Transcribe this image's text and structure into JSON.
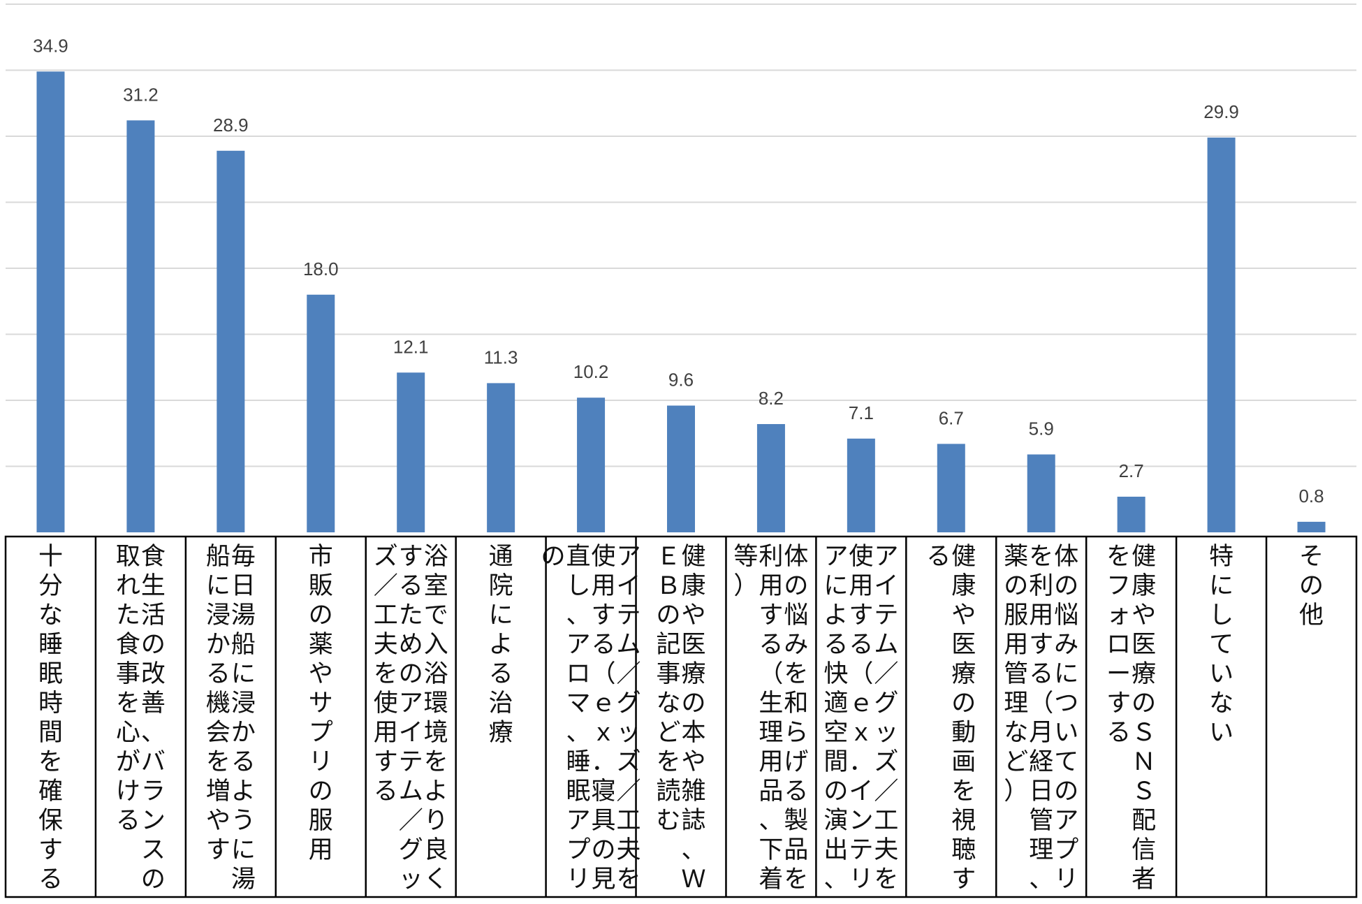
{
  "chart_data": {
    "type": "bar",
    "title": "",
    "xlabel": "",
    "ylabel": "",
    "ylim": [
      0,
      40
    ],
    "grid": true,
    "legend": "none",
    "bar_color": "#4f81bd",
    "categories": [
      "十分な睡眠時間を確保する",
      "食生活の改善、バランスの取れた食事を心がける",
      "毎日湯船に浸かるように湯船に浸かる機会を増やす",
      "市販の薬やサプリの服用",
      "浴室で入浴環境をより良くするためのアイテム／グッズ／工夫を使用する",
      "通院による治療",
      "アイテム／グッズ／工夫を使用する（ｅｘ．寝具の見直し、アロマ、睡眠アプリの",
      "健康や医療の本や雑誌、ＷＥＢの記事などを読む",
      "体の悩みを和らげる製品を利用する（生理用品、下着等）",
      "アイテム／グッズ／工夫を使用する（ｅｘ．インテリアによる快適空間の演出、",
      "健康や医療の動画を視聴する",
      "体の悩みについてのアプリを利用する（月経日管理、薬の服用管理など）",
      "健康や医療のＳＮＳ配信者をフォローする",
      "特にしていない",
      "その他"
    ],
    "values": [
      34.9,
      31.2,
      28.9,
      18.0,
      12.1,
      11.3,
      10.2,
      9.6,
      8.2,
      7.1,
      6.7,
      5.9,
      2.7,
      29.9,
      0.8
    ],
    "value_labels": [
      "34.9",
      "31.2",
      "28.9",
      "18.0",
      "12.1",
      "11.3",
      "10.2",
      "9.6",
      "8.2",
      "7.1",
      "6.7",
      "5.9",
      "2.7",
      "29.9",
      "0.8"
    ]
  }
}
